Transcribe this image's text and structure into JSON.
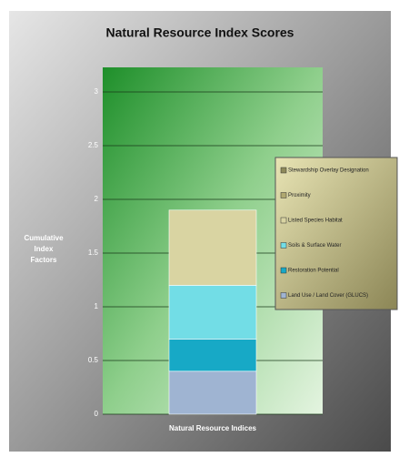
{
  "chart_data": {
    "type": "stacked-bar",
    "title": "Natural Resource Index Scores",
    "y_label": "Cumulative Index Factors",
    "categories": [
      "Natural Resource Indices"
    ],
    "series": [
      {
        "name": "Land Use / Land Cover (GLUCS)",
        "color": "#9fb4d2",
        "values": [
          0.4
        ]
      },
      {
        "name": "Restoration Potential",
        "color": "#17a9c6",
        "values": [
          0.3
        ]
      },
      {
        "name": "Soils & Surface Water",
        "color": "#72dde6",
        "values": [
          0.5
        ]
      },
      {
        "name": "Listed Species Habitat",
        "color": "#d9d4a2",
        "values": [
          0.7
        ]
      },
      {
        "name": "Proximity",
        "color": "#b0a870",
        "values": [
          0
        ]
      },
      {
        "name": "Stewardship Overlay Designation",
        "color": "#8e8a5a",
        "values": [
          0
        ]
      }
    ],
    "ylim": [
      0,
      3
    ],
    "yticks": [
      0,
      0.5,
      1,
      1.5,
      2,
      2.5,
      3
    ],
    "grid": true,
    "legend": "right"
  }
}
